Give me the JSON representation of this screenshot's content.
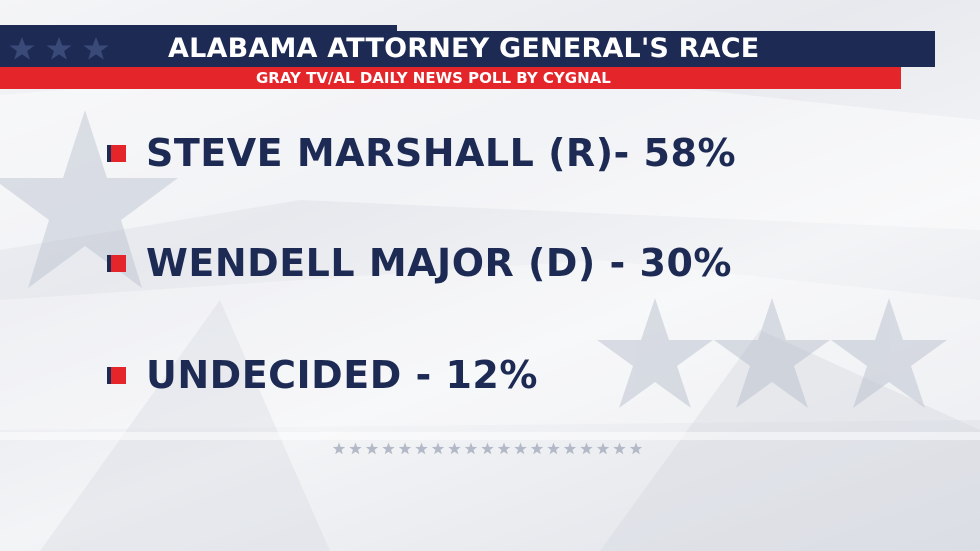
{
  "header": {
    "title": "ALABAMA ATTORNEY GENERAL'S RACE",
    "subtitle": "GRAY TV/AL DAILY NEWS POLL BY CYGNAL"
  },
  "results": [
    {
      "label": "STEVE MARSHALL (R)- 58%"
    },
    {
      "label": "WENDELL MAJOR (D) - 30%"
    },
    {
      "label": "UNDECIDED - 12%"
    }
  ],
  "colors": {
    "navy": "#1c2a54",
    "red": "#e4262b",
    "background": "#eceef2"
  },
  "decorations": {
    "background_icon": "star-icon",
    "bullet_icon": "square-bullet-icon"
  }
}
